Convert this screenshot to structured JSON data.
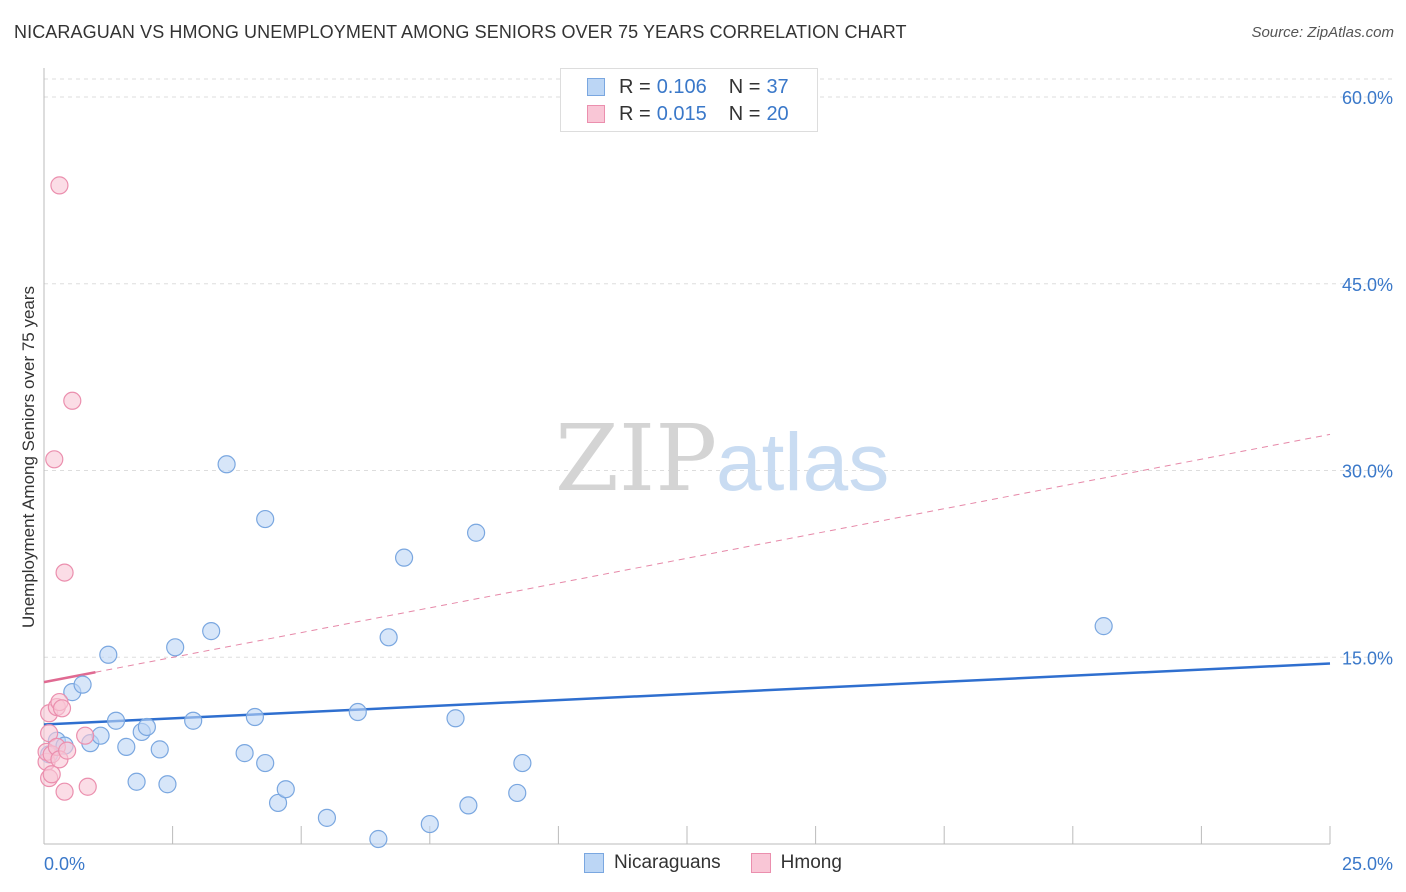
{
  "title": "NICARAGUAN VS HMONG UNEMPLOYMENT AMONG SENIORS OVER 75 YEARS CORRELATION CHART",
  "source": "Source: ZipAtlas.com",
  "watermark": {
    "zip": "ZIP",
    "atlas": "atlas"
  },
  "legend": {
    "series": [
      {
        "r_label": "R =",
        "r_value": "0.106",
        "n_label": "N =",
        "n_value": "37"
      },
      {
        "r_label": "R =",
        "r_value": "0.015",
        "n_label": "N =",
        "n_value": "20"
      }
    ]
  },
  "bottom_legend": {
    "nicaraguans": "Nicaraguans",
    "hmong": "Hmong"
  },
  "colors": {
    "blue_fill": "#bcd6f5",
    "blue_stroke": "#7aa7e0",
    "blue_line": "#2f6fcf",
    "pink_fill": "#f9c6d6",
    "pink_stroke": "#eb8fae",
    "pink_line": "#e06a92",
    "grid": "#dddddd",
    "axis_text": "#3a78c9"
  },
  "chart_data": {
    "type": "scatter",
    "title": "NICARAGUAN VS HMONG UNEMPLOYMENT AMONG SENIORS OVER 75 YEARS CORRELATION CHART",
    "xlabel": "",
    "ylabel": "Unemployment Among Seniors over 75 years",
    "xlim": [
      0,
      25
    ],
    "ylim": [
      0,
      60
    ],
    "x_tick_labels": [
      {
        "value": 0,
        "label": "0.0%"
      },
      {
        "value": 25,
        "label": "25.0%"
      }
    ],
    "y_tick_labels": [
      {
        "value": 15,
        "label": "15.0%"
      },
      {
        "value": 30,
        "label": "30.0%"
      },
      {
        "value": 45,
        "label": "45.0%"
      },
      {
        "value": 60,
        "label": "60.0%"
      }
    ],
    "series": [
      {
        "name": "Nicaraguans",
        "color": "#7aa7e0",
        "points": [
          [
            0.1,
            7.2
          ],
          [
            0.25,
            8.3
          ],
          [
            0.4,
            7.9
          ],
          [
            0.55,
            12.2
          ],
          [
            0.75,
            12.8
          ],
          [
            0.9,
            8.1
          ],
          [
            1.1,
            8.7
          ],
          [
            1.25,
            15.2
          ],
          [
            1.4,
            9.9
          ],
          [
            1.6,
            7.8
          ],
          [
            1.8,
            5.0
          ],
          [
            1.9,
            9.0
          ],
          [
            2.0,
            9.4
          ],
          [
            2.25,
            7.6
          ],
          [
            2.4,
            4.8
          ],
          [
            2.55,
            15.8
          ],
          [
            2.9,
            9.9
          ],
          [
            3.25,
            17.1
          ],
          [
            3.55,
            30.5
          ],
          [
            3.9,
            7.3
          ],
          [
            4.1,
            10.2
          ],
          [
            4.3,
            26.1
          ],
          [
            4.3,
            6.5
          ],
          [
            4.55,
            3.3
          ],
          [
            4.7,
            4.4
          ],
          [
            5.5,
            2.1
          ],
          [
            6.1,
            10.6
          ],
          [
            6.5,
            0.4
          ],
          [
            6.7,
            16.6
          ],
          [
            7.0,
            23.0
          ],
          [
            7.5,
            1.6
          ],
          [
            8.0,
            10.1
          ],
          [
            8.25,
            3.1
          ],
          [
            8.4,
            25.0
          ],
          [
            9.2,
            4.1
          ],
          [
            9.3,
            6.5
          ],
          [
            20.6,
            17.5
          ]
        ],
        "trend": {
          "x": [
            0,
            25
          ],
          "y": [
            9.6,
            14.5
          ],
          "style": "solid"
        }
      },
      {
        "name": "Hmong",
        "color": "#eb8fae",
        "points": [
          [
            0.05,
            6.6
          ],
          [
            0.05,
            7.4
          ],
          [
            0.1,
            8.9
          ],
          [
            0.1,
            10.5
          ],
          [
            0.1,
            5.3
          ],
          [
            0.15,
            5.6
          ],
          [
            0.15,
            7.2
          ],
          [
            0.2,
            30.9
          ],
          [
            0.25,
            11.0
          ],
          [
            0.25,
            7.8
          ],
          [
            0.3,
            6.8
          ],
          [
            0.3,
            52.9
          ],
          [
            0.3,
            11.4
          ],
          [
            0.35,
            10.9
          ],
          [
            0.4,
            21.8
          ],
          [
            0.4,
            4.2
          ],
          [
            0.45,
            7.5
          ],
          [
            0.55,
            35.6
          ],
          [
            0.8,
            8.7
          ],
          [
            0.85,
            4.6
          ]
        ],
        "trend": {
          "x": [
            0,
            25
          ],
          "y": [
            13.0,
            32.9
          ],
          "style": "solid-then-dashed",
          "solid_until": 1.0
        }
      }
    ]
  }
}
